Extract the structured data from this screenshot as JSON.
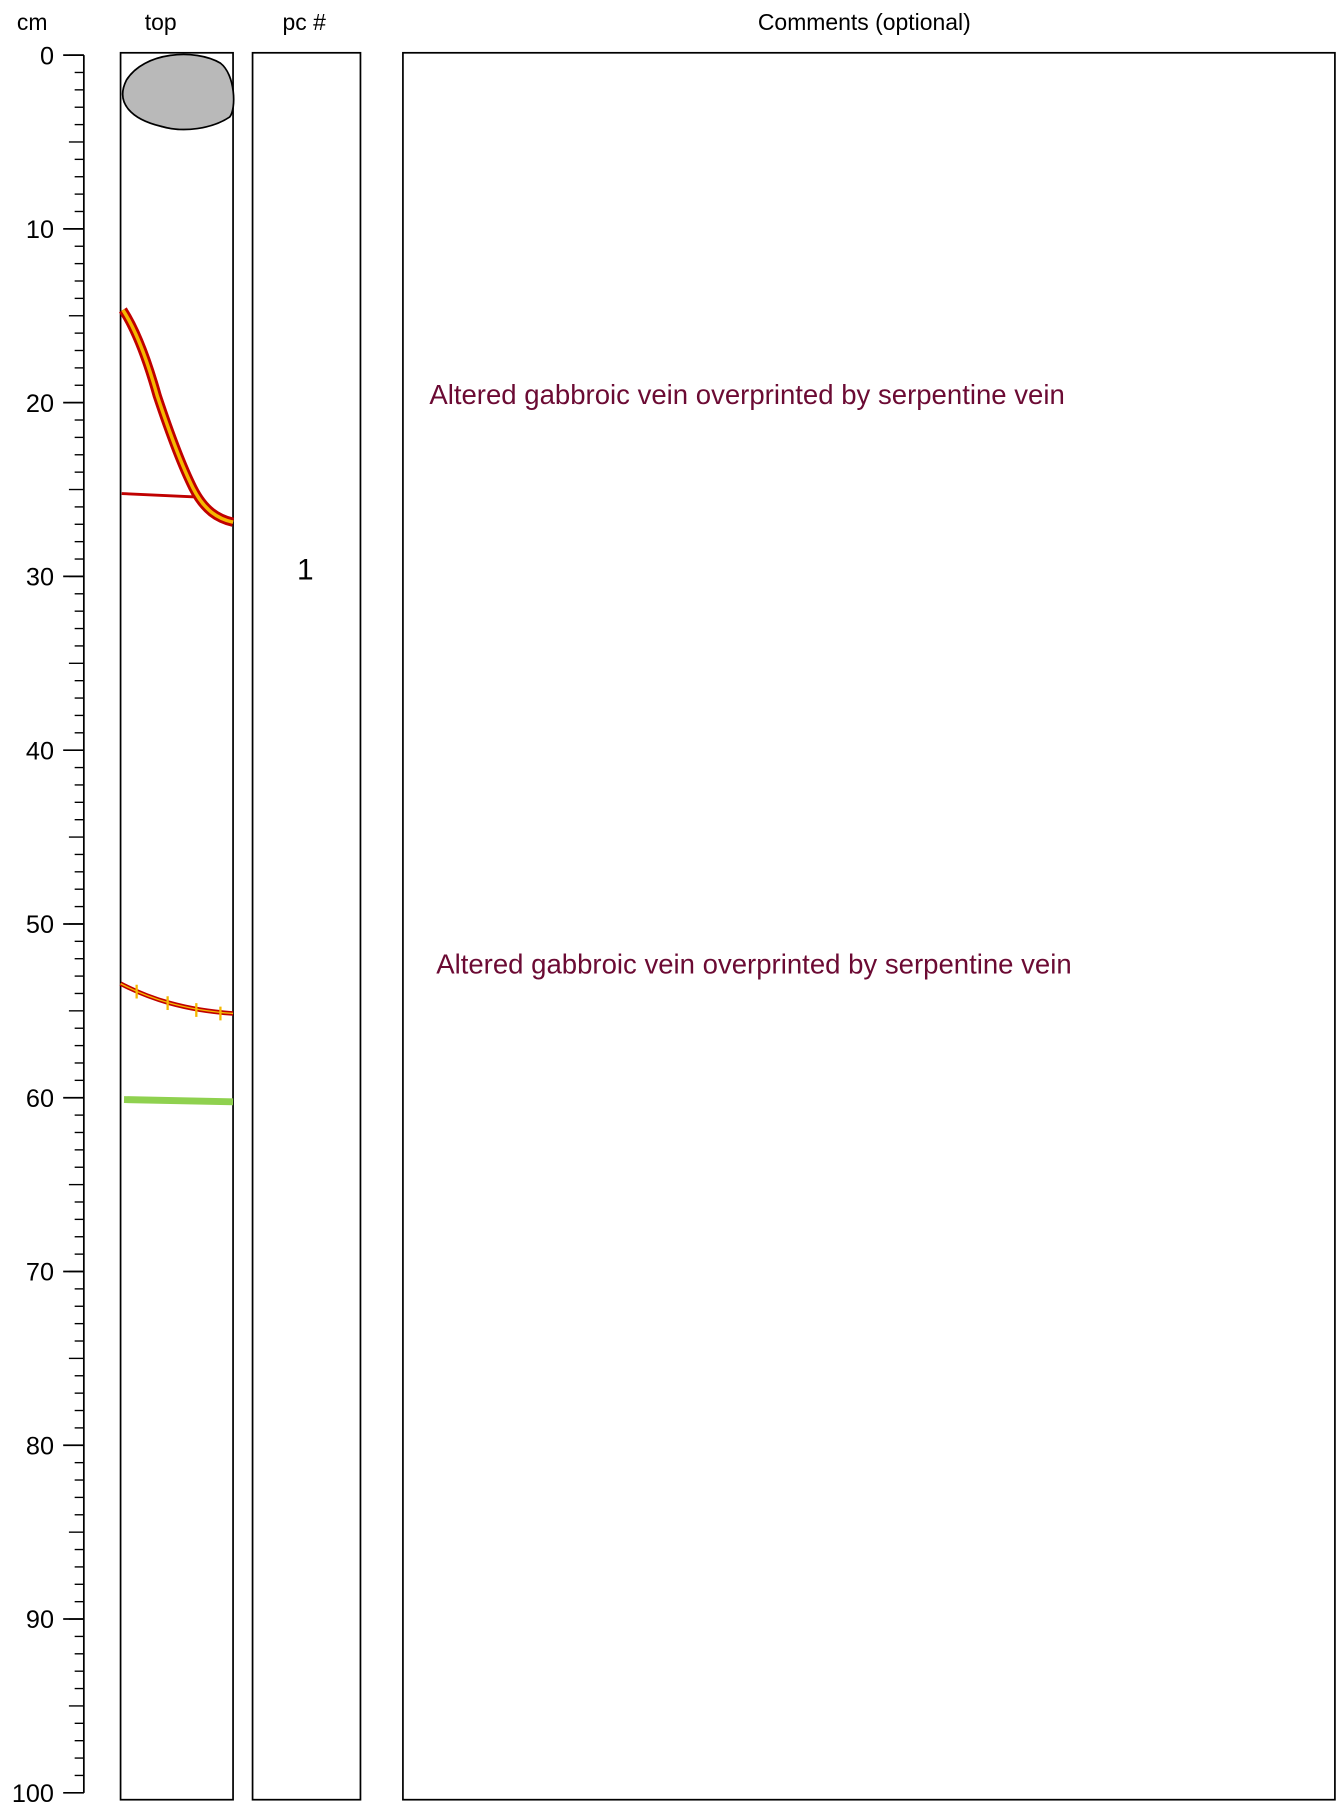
{
  "headers": {
    "depth": "cm",
    "top": "top",
    "piece": "pc #",
    "comments": "Comments (optional)"
  },
  "depth_axis": {
    "ylim": [
      0,
      100
    ],
    "ticks": [
      0,
      10,
      20,
      30,
      40,
      50,
      60,
      70,
      80,
      90,
      100
    ]
  },
  "pieces": [
    {
      "number": "1"
    }
  ],
  "comments": [
    "Altered gabbroic vein overprinted by serpentine vein",
    "Altered gabbroic vein overprinted by serpentine vein"
  ]
}
